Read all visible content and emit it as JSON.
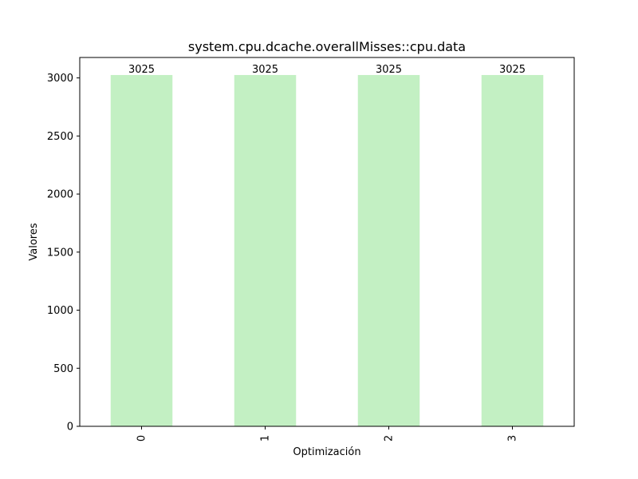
{
  "chart_data": {
    "type": "bar",
    "title": "system.cpu.dcache.overallMisses::cpu.data",
    "xlabel": "Optimización",
    "ylabel": "Valores",
    "categories": [
      "0",
      "1",
      "2",
      "3"
    ],
    "values": [
      3025,
      3025,
      3025,
      3025
    ],
    "data_labels": [
      "3025",
      "3025",
      "3025",
      "3025"
    ],
    "yticks": [
      0,
      500,
      1000,
      1500,
      2000,
      2500,
      3000
    ],
    "ylim": [
      0,
      3176
    ],
    "bar_color": "#c3f0c3",
    "grid": false,
    "legend": "none"
  }
}
